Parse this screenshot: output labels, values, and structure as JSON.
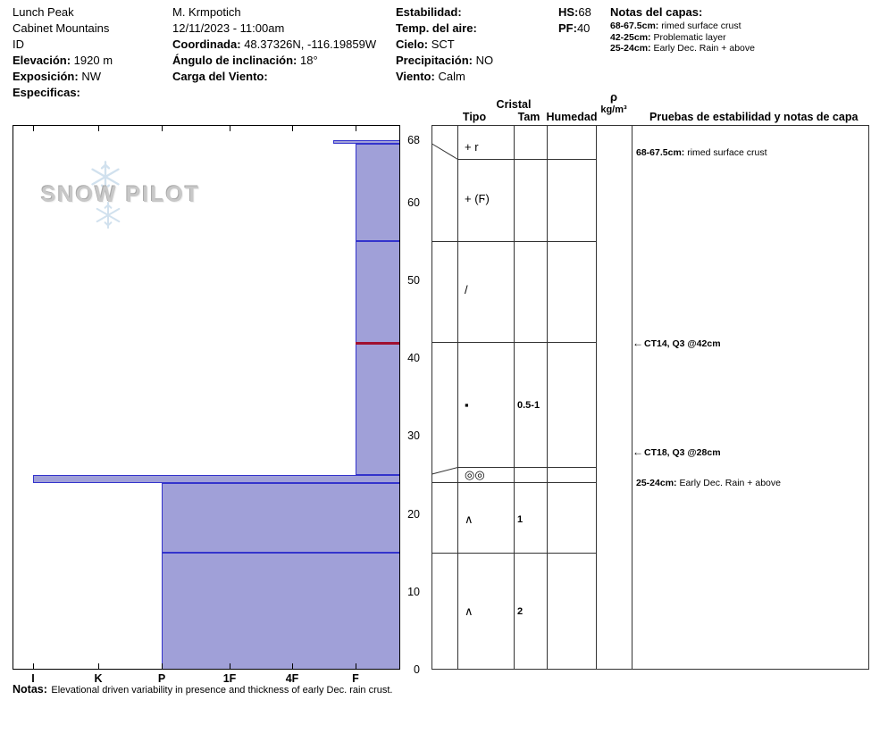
{
  "site": {
    "name": "Lunch Peak",
    "range": "Cabinet Mountains",
    "state": "ID",
    "elevation_label": "Elevación:",
    "elevation_value": "1920 m",
    "aspect_label": "Exposición:",
    "aspect_value": "NW",
    "specifics_label": "Especificas:"
  },
  "observer": {
    "name": "M. Krmpotich",
    "datetime": "12/11/2023 - 11:00am",
    "coord_label": "Coordinada:",
    "coord_value": "48.37326N, -116.19859W",
    "slope_label": "Ángulo de inclinación:",
    "slope_value": "18°",
    "wind_load_label": "Carga del Viento:"
  },
  "conditions": {
    "stability_label": "Estabilidad:",
    "air_temp_label": "Temp. del aire:",
    "sky_label": "Cielo:",
    "sky_value": "SCT",
    "precip_label": "Precipitación:",
    "precip_value": "NO",
    "wind_label": "Viento:",
    "wind_value": "Calm"
  },
  "totals": {
    "hs_label": "HS:",
    "hs_value": "68",
    "pf_label": "PF:",
    "pf_value": "40"
  },
  "layer_notes": {
    "header": "Notas del capas:",
    "items": [
      {
        "label": "68-67.5cm:",
        "text": "rimed surface crust"
      },
      {
        "label": "42-25cm:",
        "text": "Problematic layer"
      },
      {
        "label": "25-24cm:",
        "text": "Early Dec. Rain + above"
      }
    ]
  },
  "logo": {
    "word1": "SNOW",
    "word2": "PILOT"
  },
  "table_headers": {
    "cristal": "Cristal",
    "tipo": "Tipo",
    "tam": "Tam",
    "humedad": "Humedad",
    "rho": "ρ",
    "rho_units": "kg/m³",
    "tests": "Pruebas de estabilidad y notas de capa"
  },
  "footer": {
    "label": "Notas:",
    "text": "Elevational driven variability in presence and thickness of early Dec. rain crust."
  },
  "chart_data": {
    "type": "bar",
    "title": "",
    "xlabel": "",
    "ylabel": "",
    "ylim": [
      0,
      68
    ],
    "x_axis_hardness": [
      "I",
      "K",
      "P",
      "1F",
      "4F",
      "F"
    ],
    "y_ticks": [
      68,
      60,
      50,
      40,
      30,
      20,
      10,
      0
    ],
    "bar_fill": "#a0a0d8",
    "bar_border": "#3333cc",
    "problem_line_color": "#a01030",
    "layers": [
      {
        "top_cm": 68,
        "bottom_cm": 67.5,
        "hardness": "4F-F",
        "grain_type": "+ r",
        "grain_size": ""
      },
      {
        "top_cm": 67.5,
        "bottom_cm": 55,
        "hardness": "F",
        "grain_type": "+ (Ϝ)",
        "grain_size": ""
      },
      {
        "top_cm": 55,
        "bottom_cm": 42,
        "hardness": "F",
        "grain_type": "/",
        "grain_size": ""
      },
      {
        "top_cm": 42,
        "bottom_cm": 25,
        "hardness": "F",
        "grain_type": "▪",
        "grain_size": "0.5-1",
        "problematic_top": true
      },
      {
        "top_cm": 25,
        "bottom_cm": 24,
        "hardness": "I",
        "grain_type": "◎◎",
        "grain_size": ""
      },
      {
        "top_cm": 24,
        "bottom_cm": 15,
        "hardness": "P",
        "grain_type": "∧",
        "grain_size": "1"
      },
      {
        "top_cm": 15,
        "bottom_cm": 0,
        "hardness": "P",
        "grain_type": "∧",
        "grain_size": "2"
      }
    ],
    "stability_tests": [
      {
        "label": "CT14, Q3 @42cm",
        "depth_cm": 42
      },
      {
        "label": "CT18, Q3 @28cm",
        "depth_cm": 28
      }
    ],
    "profile_notes": [
      {
        "label": "68-67.5cm:",
        "text": "rimed surface crust"
      },
      {
        "label": "25-24cm:",
        "text": "Early Dec. Rain + above"
      }
    ]
  }
}
